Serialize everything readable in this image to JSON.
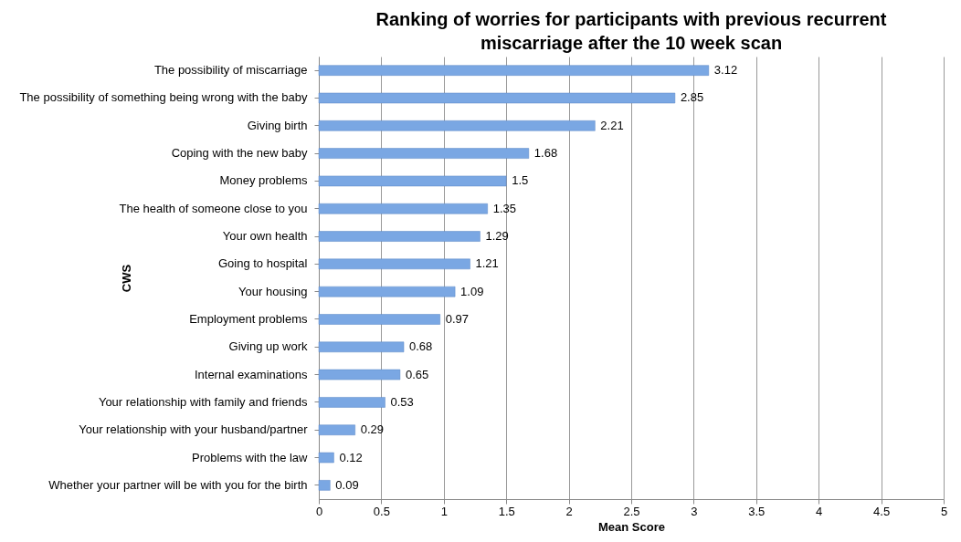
{
  "chart_data": {
    "type": "bar",
    "orientation": "horizontal",
    "title": "Ranking of worries for participants with previous recurrent miscarriage after the 10 week scan",
    "xlabel": "Mean Score",
    "ylabel": "CWS",
    "categories": [
      "The possibility of miscarriage",
      "The possibility of something being wrong with the baby",
      "Giving birth",
      "Coping with the new baby",
      "Money problems",
      "The health of someone close to you",
      "Your own health",
      "Going to hospital",
      "Your housing",
      "Employment problems",
      "Giving up work",
      "Internal examinations",
      "Your relationship with family and friends",
      "Your relationship with your husband/partner",
      "Problems with the law",
      "Whether your partner will be with you for the birth"
    ],
    "values": [
      3.12,
      2.85,
      2.21,
      1.68,
      1.5,
      1.35,
      1.29,
      1.21,
      1.09,
      0.97,
      0.68,
      0.65,
      0.53,
      0.29,
      0.12,
      0.09
    ],
    "value_labels": [
      "3.12",
      "2.85",
      "2.21",
      "1.68",
      "1.5",
      "1.35",
      "1.29",
      "1.21",
      "1.09",
      "0.97",
      "0.68",
      "0.65",
      "0.53",
      "0.29",
      "0.12",
      "0.09"
    ],
    "color": "#7aa7e3",
    "xlim": [
      0,
      5
    ],
    "xticks": [
      0,
      0.5,
      1,
      1.5,
      2,
      2.5,
      3,
      3.5,
      4,
      4.5,
      5
    ],
    "grid": "x"
  }
}
